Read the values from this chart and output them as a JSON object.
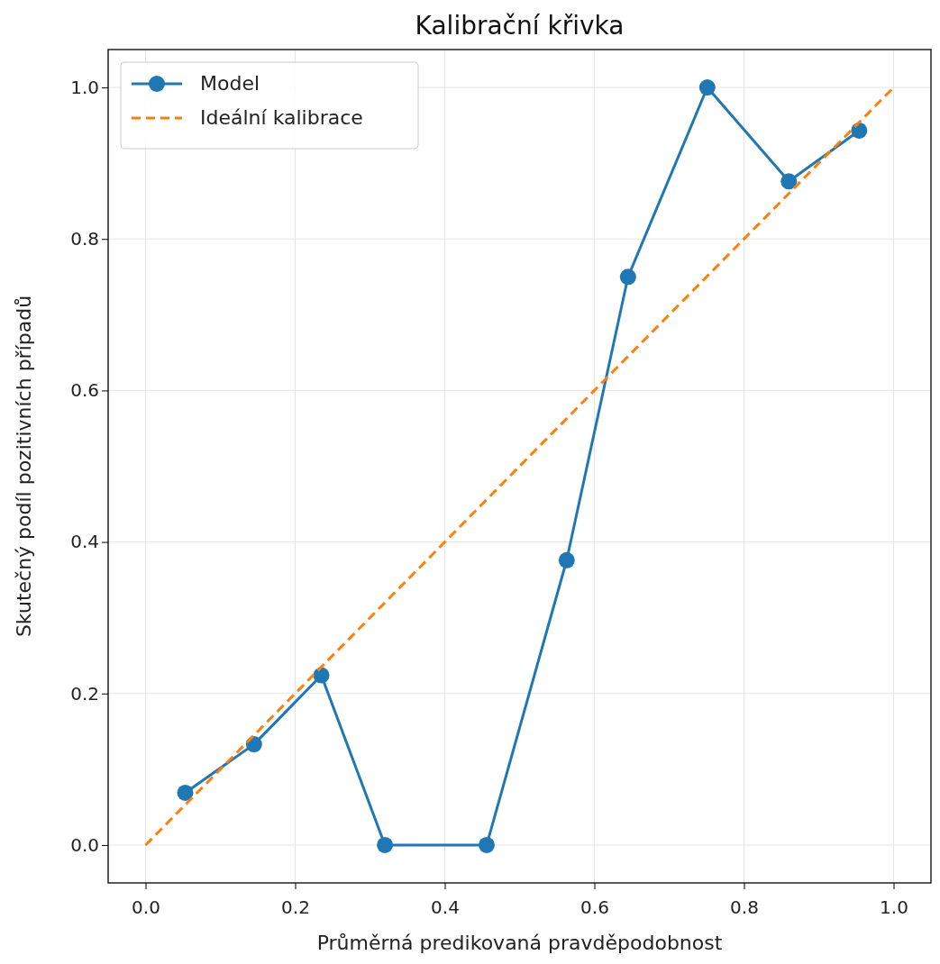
{
  "chart_data": {
    "type": "line",
    "title": "Kalibrační křivka",
    "xlabel": "Průměrná predikovaná pravděpodobnost",
    "ylabel": "Skutečný podíl pozitivních případů",
    "xlim": [
      -0.05,
      1.05
    ],
    "ylim": [
      -0.05,
      1.05
    ],
    "xticks": [
      {
        "value": 0,
        "label": "0.0"
      },
      {
        "value": 0.2,
        "label": "0.2"
      },
      {
        "value": 0.4,
        "label": "0.4"
      },
      {
        "value": 0.6,
        "label": "0.6"
      },
      {
        "value": 0.8,
        "label": "0.8"
      },
      {
        "value": 1,
        "label": "1.0"
      }
    ],
    "yticks": [
      {
        "value": 0,
        "label": "0.0"
      },
      {
        "value": 0.2,
        "label": "0.2"
      },
      {
        "value": 0.4,
        "label": "0.4"
      },
      {
        "value": 0.6,
        "label": "0.6"
      },
      {
        "value": 0.8,
        "label": "0.8"
      },
      {
        "value": 1,
        "label": "1.0"
      }
    ],
    "grid": true,
    "legend": "top left",
    "series": [
      {
        "name": "Model",
        "color": "#1f77b4",
        "marker": "circle",
        "line_style": "solid",
        "x": [
          0.053,
          0.145,
          0.235,
          0.32,
          0.456,
          0.563,
          0.645,
          0.751,
          0.86,
          0.954
        ],
        "values": [
          0.069,
          0.133,
          0.224,
          0,
          0,
          0.376,
          0.75,
          1.0,
          0.876,
          0.943
        ]
      },
      {
        "name": "Ideální kalibrace",
        "color": "#ff7f0e",
        "marker": "none",
        "line_style": "dashed",
        "x": [
          0,
          1
        ],
        "values": [
          0,
          1
        ]
      }
    ]
  }
}
